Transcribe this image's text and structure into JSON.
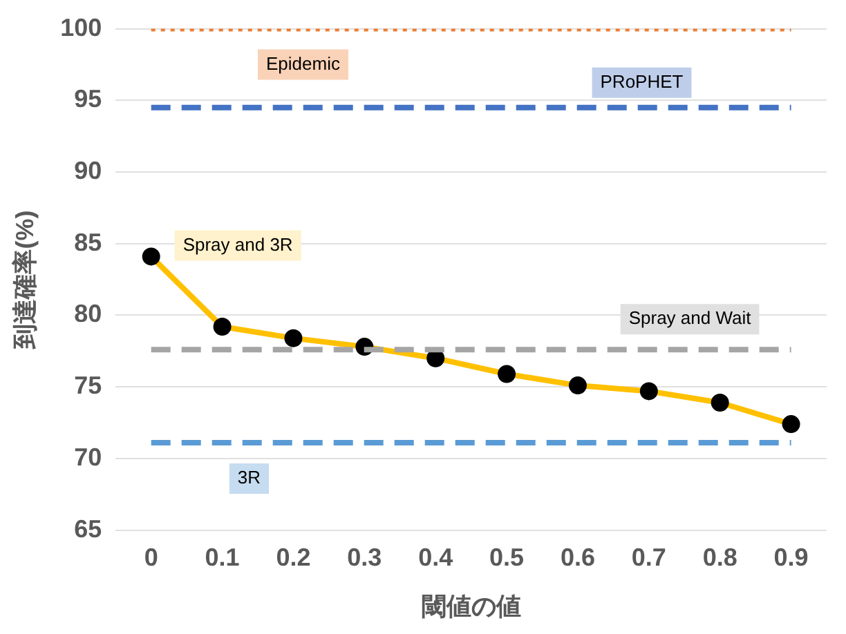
{
  "chart_data": {
    "type": "line",
    "xlabel": "閾値の値",
    "ylabel": "到達確率(%)",
    "categories": [
      "0",
      "0.1",
      "0.2",
      "0.3",
      "0.4",
      "0.5",
      "0.6",
      "0.7",
      "0.8",
      "0.9"
    ],
    "ylim": [
      65,
      100
    ],
    "yticks": [
      65,
      70,
      75,
      80,
      85,
      90,
      95,
      100
    ],
    "grid": "y",
    "legend": false,
    "series": [
      {
        "name": "Epidemic",
        "color": "#ed7d31",
        "line_style": "dotted",
        "marker": "none",
        "values": [
          100,
          100,
          100,
          100,
          100,
          100,
          100,
          100,
          100,
          100
        ]
      },
      {
        "name": "PRoPHET",
        "color": "#4472c4",
        "line_style": "dashed",
        "marker": "none",
        "values": [
          94.5,
          94.5,
          94.5,
          94.5,
          94.5,
          94.5,
          94.5,
          94.5,
          94.5,
          94.5
        ]
      },
      {
        "name": "Spray and Wait",
        "color": "#a5a5a5",
        "line_style": "dashed",
        "marker": "none",
        "values": [
          77.6,
          77.6,
          77.6,
          77.6,
          77.6,
          77.6,
          77.6,
          77.6,
          77.6,
          77.6
        ]
      },
      {
        "name": "3R",
        "color": "#5b9bd5",
        "line_style": "dashed",
        "marker": "none",
        "values": [
          71.1,
          71.1,
          71.1,
          71.1,
          71.1,
          71.1,
          71.1,
          71.1,
          71.1,
          71.1
        ]
      },
      {
        "name": "Spray and 3R",
        "color": "#ffc000",
        "line_style": "solid",
        "marker": "circle",
        "values": [
          84.1,
          79.2,
          78.4,
          77.8,
          77.0,
          75.9,
          75.1,
          74.7,
          73.9,
          72.4
        ]
      }
    ]
  }
}
